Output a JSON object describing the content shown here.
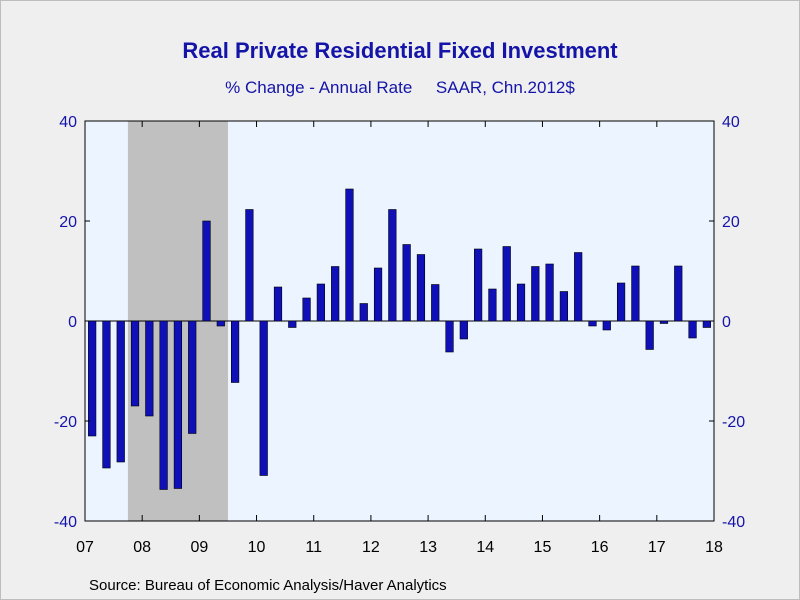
{
  "chart_data": {
    "type": "bar",
    "title": "Real Private Residential Fixed Investment",
    "subtitle": "% Change - Annual Rate     SAAR, Chn.2012$",
    "source": "Source:  Bureau of Economic Analysis/Haver Analytics",
    "ylim": [
      -40,
      40
    ],
    "yticks": [
      "40",
      "20",
      "0",
      "-20",
      "-40"
    ],
    "ytick_values": [
      40,
      20,
      0,
      -20,
      -40
    ],
    "xlabels": [
      "07",
      "08",
      "09",
      "10",
      "11",
      "12",
      "13",
      "14",
      "15",
      "16",
      "17",
      "18"
    ],
    "recession": {
      "start_quarter": "2007Q4",
      "end_quarter": "2009Q2"
    },
    "grid": false,
    "colors": {
      "bar": "#1010b8",
      "text": "#1414a8",
      "plot_bg": "#ecf5ff",
      "recession": "#c0c0c0"
    },
    "start_quarter": "2007Q1",
    "series": [
      {
        "values": [
          -23.0,
          -29.4,
          -28.2,
          -17.0,
          -19.0,
          -33.7,
          -33.5,
          -22.5,
          20.0,
          -1.0,
          -12.3,
          22.3,
          -30.9,
          6.8,
          -1.3,
          4.6,
          7.4,
          10.9,
          26.4,
          3.5,
          10.6,
          22.3,
          15.3,
          13.3,
          7.3,
          -6.2,
          -3.6,
          14.4,
          6.4,
          14.9,
          7.4,
          10.9,
          11.4,
          5.9,
          13.7,
          -1.0,
          -1.8,
          7.6,
          11.0,
          -5.7,
          -0.5,
          11.0,
          -3.4,
          -1.3
        ]
      }
    ]
  }
}
